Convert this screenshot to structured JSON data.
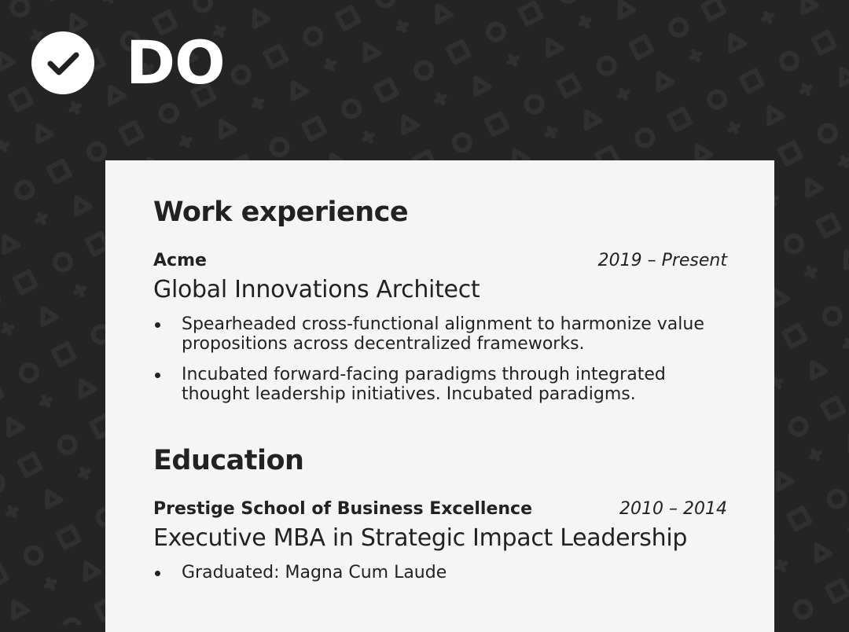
{
  "header": {
    "verdict": "DO",
    "icon": "check-circle-icon"
  },
  "colors": {
    "background": "#242424",
    "pattern": "#2e2e2e",
    "sheet": "#f5f5f5",
    "text": "#222222"
  },
  "resume": {
    "work": {
      "title": "Work experience",
      "company": "Acme",
      "dates": "2019 – Present",
      "role": "Global Innovations Architect",
      "bullets": [
        {
          "line1": "Spearheaded cross-functional alignment to harmonize value",
          "line2": "propositions across decentralized frameworks."
        },
        {
          "line1": "Incubated forward-facing paradigms through integrated",
          "line2": "thought leadership initiatives. Incubated paradigms."
        }
      ]
    },
    "education": {
      "title": "Education",
      "school": "Prestige School of Business Excellence",
      "dates": "2010 – 2014",
      "degree": "Executive MBA in Strategic Impact Leadership",
      "bullets": [
        {
          "line1": "Graduated: Magna Cum Laude"
        }
      ]
    }
  }
}
